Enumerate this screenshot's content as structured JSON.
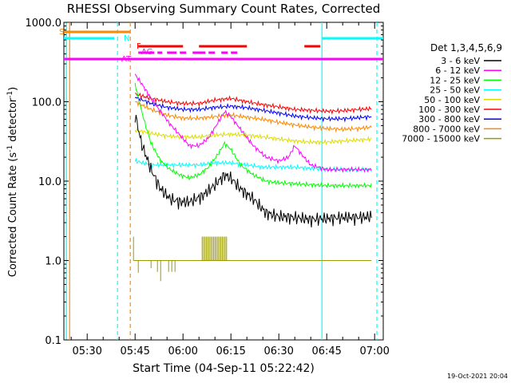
{
  "chart_data": {
    "type": "line",
    "title": "RHESSI Observing Summary Count Rates, Corrected",
    "xlabel": "Start Time (04-Sep-11 05:22:42)",
    "ylabel": "Corrected Count Rate (s",
    "ylabel_sup": "-1",
    "ylabel_mid": " detector",
    "ylabel_sup2": "-1",
    "ylabel_end": ")",
    "yscale": "log",
    "ylim": [
      0.1,
      1000
    ],
    "xlim_minutes": [
      22.7,
      122.7
    ],
    "x_ticks": [
      {
        "label": "05:30",
        "minute": 30
      },
      {
        "label": "05:45",
        "minute": 45
      },
      {
        "label": "06:00",
        "minute": 60
      },
      {
        "label": "06:15",
        "minute": 75
      },
      {
        "label": "06:30",
        "minute": 90
      },
      {
        "label": "06:45",
        "minute": 105
      },
      {
        "label": "07:00",
        "minute": 120
      }
    ],
    "y_ticks": [
      {
        "label": "0.1",
        "value": 0.1
      },
      {
        "label": "1.0",
        "value": 1
      },
      {
        "label": "10.0",
        "value": 10
      },
      {
        "label": "100.0",
        "value": 100
      },
      {
        "label": "1000.0",
        "value": 1000
      }
    ],
    "legend_title": "Det 1,3,4,5,6,9",
    "legend_placement": "right",
    "timestamp": "19-Oct-2021 20:04",
    "series": [
      {
        "name": "3 - 6 keV",
        "color": "#000000",
        "points": [
          [
            45,
            70
          ],
          [
            47,
            30
          ],
          [
            50,
            14
          ],
          [
            53,
            8
          ],
          [
            56,
            6
          ],
          [
            59,
            5.5
          ],
          [
            62,
            5.5
          ],
          [
            66,
            6.5
          ],
          [
            70,
            9
          ],
          [
            73,
            12
          ],
          [
            75,
            11
          ],
          [
            78,
            8
          ],
          [
            82,
            6
          ],
          [
            86,
            4
          ],
          [
            90,
            3.6
          ],
          [
            95,
            3.5
          ],
          [
            100,
            3.3
          ],
          [
            105,
            3.4
          ],
          [
            110,
            3.5
          ],
          [
            115,
            3.5
          ],
          [
            119,
            3.6
          ]
        ]
      },
      {
        "name": "6 - 12 keV",
        "color": "#ff00ff",
        "points": [
          [
            45,
            220
          ],
          [
            47,
            170
          ],
          [
            50,
            110
          ],
          [
            53,
            75
          ],
          [
            56,
            52
          ],
          [
            59,
            38
          ],
          [
            62,
            28
          ],
          [
            65,
            28
          ],
          [
            68,
            35
          ],
          [
            71,
            55
          ],
          [
            73,
            75
          ],
          [
            75,
            65
          ],
          [
            78,
            45
          ],
          [
            82,
            28
          ],
          [
            86,
            20
          ],
          [
            90,
            18
          ],
          [
            93,
            20
          ],
          [
            95,
            28
          ],
          [
            97,
            22
          ],
          [
            100,
            16
          ],
          [
            105,
            14
          ],
          [
            110,
            14
          ],
          [
            115,
            14
          ],
          [
            119,
            14
          ]
        ]
      },
      {
        "name": "12 - 25 keV",
        "color": "#00ff00",
        "points": [
          [
            45,
            170
          ],
          [
            46,
            110
          ],
          [
            48,
            55
          ],
          [
            50,
            30
          ],
          [
            53,
            18
          ],
          [
            56,
            14
          ],
          [
            59,
            12
          ],
          [
            62,
            11
          ],
          [
            65,
            12
          ],
          [
            68,
            15
          ],
          [
            71,
            22
          ],
          [
            73,
            30
          ],
          [
            75,
            25
          ],
          [
            78,
            16
          ],
          [
            82,
            12
          ],
          [
            86,
            10
          ],
          [
            90,
            9.5
          ],
          [
            95,
            9.3
          ],
          [
            100,
            9
          ],
          [
            105,
            8.8
          ],
          [
            110,
            8.8
          ],
          [
            115,
            8.8
          ],
          [
            119,
            8.8
          ]
        ]
      },
      {
        "name": "25 - 50 keV",
        "color": "#00ffff",
        "points": [
          [
            45,
            18
          ],
          [
            50,
            16
          ],
          [
            55,
            16
          ],
          [
            60,
            16
          ],
          [
            65,
            16
          ],
          [
            70,
            17
          ],
          [
            75,
            17
          ],
          [
            80,
            16
          ],
          [
            85,
            15
          ],
          [
            90,
            15
          ],
          [
            95,
            15
          ],
          [
            100,
            14.5
          ],
          [
            105,
            14
          ],
          [
            110,
            14
          ],
          [
            115,
            14
          ],
          [
            119,
            14
          ]
        ]
      },
      {
        "name": "50 - 100 keV",
        "color": "#dddd00",
        "points": [
          [
            45,
            44
          ],
          [
            50,
            40
          ],
          [
            55,
            37
          ],
          [
            60,
            36
          ],
          [
            65,
            36
          ],
          [
            70,
            38
          ],
          [
            75,
            39
          ],
          [
            80,
            38
          ],
          [
            85,
            36
          ],
          [
            90,
            34
          ],
          [
            95,
            32
          ],
          [
            100,
            31
          ],
          [
            105,
            31
          ],
          [
            110,
            32
          ],
          [
            115,
            33
          ],
          [
            119,
            34
          ]
        ]
      },
      {
        "name": "100 - 300 keV",
        "color": "#ff0000",
        "points": [
          [
            45,
            125
          ],
          [
            50,
            110
          ],
          [
            55,
            100
          ],
          [
            60,
            95
          ],
          [
            65,
            95
          ],
          [
            70,
            105
          ],
          [
            75,
            110
          ],
          [
            80,
            100
          ],
          [
            85,
            92
          ],
          [
            90,
            86
          ],
          [
            95,
            80
          ],
          [
            100,
            78
          ],
          [
            105,
            76
          ],
          [
            110,
            77
          ],
          [
            115,
            80
          ],
          [
            119,
            82
          ]
        ]
      },
      {
        "name": "300 - 800 keV",
        "color": "#0000ff",
        "points": [
          [
            45,
            115
          ],
          [
            50,
            95
          ],
          [
            55,
            85
          ],
          [
            60,
            80
          ],
          [
            65,
            80
          ],
          [
            70,
            85
          ],
          [
            75,
            88
          ],
          [
            80,
            84
          ],
          [
            85,
            78
          ],
          [
            90,
            72
          ],
          [
            95,
            66
          ],
          [
            100,
            63
          ],
          [
            105,
            61
          ],
          [
            110,
            61
          ],
          [
            115,
            63
          ],
          [
            119,
            65
          ]
        ]
      },
      {
        "name": "800 - 7000 keV",
        "color": "#ff8800",
        "points": [
          [
            45,
            100
          ],
          [
            50,
            80
          ],
          [
            55,
            68
          ],
          [
            60,
            62
          ],
          [
            65,
            62
          ],
          [
            70,
            65
          ],
          [
            75,
            68
          ],
          [
            80,
            64
          ],
          [
            85,
            60
          ],
          [
            90,
            55
          ],
          [
            95,
            51
          ],
          [
            100,
            48
          ],
          [
            105,
            46
          ],
          [
            110,
            45
          ],
          [
            115,
            46
          ],
          [
            119,
            48
          ]
        ]
      },
      {
        "name": "7000 - 15000 keV",
        "color": "#999900",
        "points": [
          [
            44.5,
            1
          ],
          [
            52,
            1
          ],
          [
            60,
            1
          ],
          [
            66,
            1
          ],
          [
            70,
            1
          ],
          [
            74,
            1
          ],
          [
            78,
            1
          ],
          [
            85,
            1
          ],
          [
            95,
            1
          ],
          [
            105,
            1
          ],
          [
            119,
            1
          ]
        ]
      }
    ],
    "flags": [
      {
        "label": "S",
        "color": "#ff8800"
      },
      {
        "label": "N",
        "color": "#00ffff"
      },
      {
        "label": "F",
        "color": "#ff0000"
      },
      {
        "label": "AG",
        "color": "#ff00ff"
      },
      {
        "label": "AT",
        "color": "#ff00ff"
      }
    ],
    "vertical_lines": [
      {
        "minute": 23.5,
        "color": "#00ffff",
        "style": "solid"
      },
      {
        "minute": 24.5,
        "color": "#ff8800",
        "style": "solid"
      },
      {
        "minute": 39.5,
        "color": "#00ffff",
        "style": "dashed"
      },
      {
        "minute": 43.5,
        "color": "#ff8800",
        "style": "dashed"
      },
      {
        "minute": 103.5,
        "color": "#00ffff",
        "style": "solid"
      },
      {
        "minute": 120.7,
        "color": "#00ffff",
        "style": "dashed"
      }
    ]
  }
}
